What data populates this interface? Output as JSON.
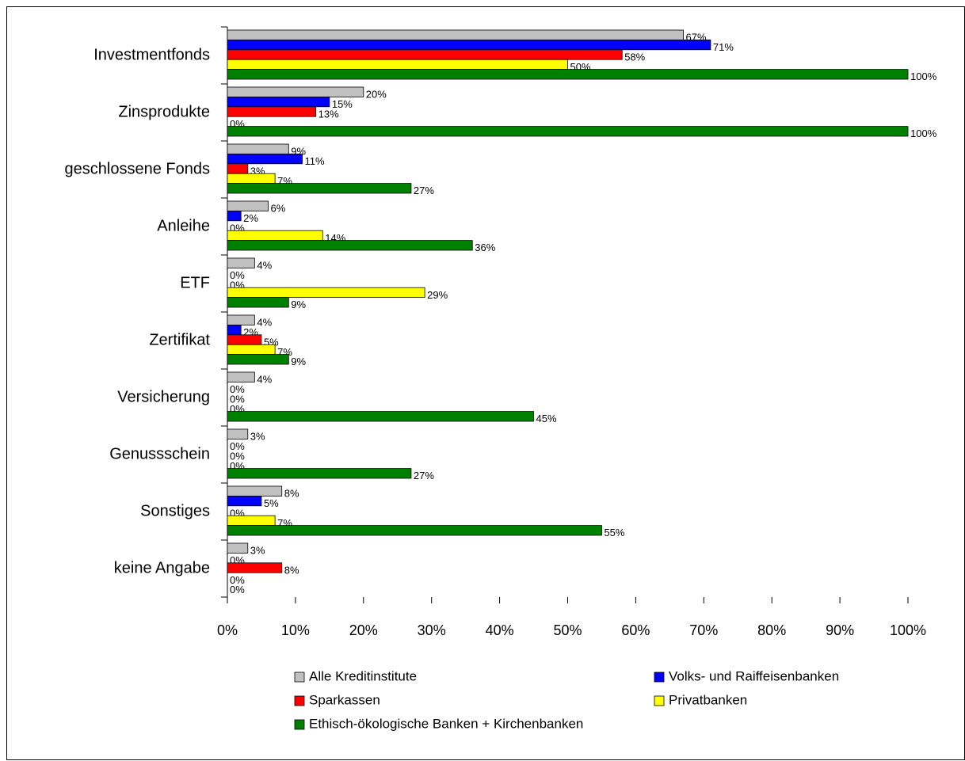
{
  "chart_data": {
    "type": "hbar",
    "categories": [
      "Investmentfonds",
      "Zinsprodukte",
      "geschlossene Fonds",
      "Anleihe",
      "ETF",
      "Zertifikat",
      "Versicherung",
      "Genussschein",
      "Sonstiges",
      "keine Angabe"
    ],
    "series": [
      {
        "name": "Alle Kreditinstitute",
        "color": "#c0c0c0",
        "values": [
          67,
          20,
          9,
          6,
          4,
          4,
          4,
          3,
          8,
          3
        ],
        "value_labels": [
          "67%",
          "20%",
          "9%",
          "6%",
          "4%",
          "4%",
          "4%",
          "3%",
          "8%",
          "3%"
        ]
      },
      {
        "name": "Volks- und Raiffeisenbanken",
        "color": "#0000ff",
        "values": [
          71,
          15,
          11,
          2,
          0,
          2,
          0,
          0,
          5,
          0
        ],
        "value_labels": [
          "71%",
          "15%",
          "11%",
          "2%",
          "0%",
          "2%",
          "0%",
          "0%",
          "5%",
          "0%"
        ]
      },
      {
        "name": "Sparkassen",
        "color": "#ff0000",
        "values": [
          58,
          13,
          3,
          0,
          0,
          5,
          0,
          0,
          0,
          8
        ],
        "value_labels": [
          "58%",
          "13%",
          "3%",
          "0%",
          "0%",
          "5%",
          "0%",
          "0%",
          "0%",
          "8%"
        ]
      },
      {
        "name": "Privatbanken",
        "color": "#ffff00",
        "values": [
          50,
          0,
          7,
          14,
          29,
          7,
          0,
          0,
          7,
          0
        ],
        "value_labels": [
          "50%",
          "0%",
          "7%",
          "14%",
          "29%",
          "7%",
          "0%",
          "0%",
          "7%",
          "0%"
        ]
      },
      {
        "name": "Ethisch-ökologische Banken + Kirchenbanken",
        "color": "#008000",
        "values": [
          100,
          100,
          27,
          36,
          9,
          9,
          45,
          27,
          55,
          0
        ],
        "value_labels": [
          "100%",
          "100%",
          "27%",
          "36%",
          "9%",
          "9%",
          "45%",
          "27%",
          "55%",
          "0%"
        ]
      }
    ],
    "xlim": [
      0,
      100
    ],
    "xticks": [
      {
        "value": 0,
        "label": "0%"
      },
      {
        "value": 10,
        "label": "10%"
      },
      {
        "value": 20,
        "label": "20%"
      },
      {
        "value": 30,
        "label": "30%"
      },
      {
        "value": 40,
        "label": "40%"
      },
      {
        "value": 50,
        "label": "50%"
      },
      {
        "value": 60,
        "label": "60%"
      },
      {
        "value": 70,
        "label": "70%"
      },
      {
        "value": 80,
        "label": "80%"
      },
      {
        "value": 90,
        "label": "90%"
      },
      {
        "value": 100,
        "label": "100%"
      }
    ],
    "legend": "bottom"
  }
}
